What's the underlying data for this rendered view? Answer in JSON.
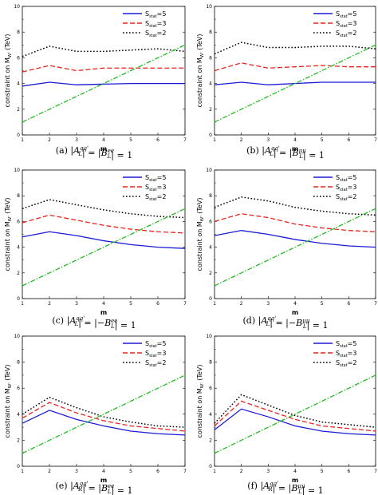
{
  "chart_data": [
    {
      "type": "line",
      "caption": "(a) |A_L^{qq'}| = |B_L^{ee}| = 1",
      "xlabel": "m",
      "ylabel": "constraint on M_W' (TeV)",
      "xlim": [
        1,
        7
      ],
      "ylim": [
        0,
        10
      ],
      "x_ticks": [
        1,
        2,
        3,
        4,
        5,
        6,
        7
      ],
      "y_ticks": [
        0,
        2,
        4,
        6,
        8,
        10
      ],
      "legend_position": "top-right",
      "legend": [
        "S_stat=5",
        "S_stat=3",
        "S_stat=2"
      ],
      "x": [
        1,
        2,
        3,
        4,
        5,
        6,
        7
      ],
      "series": [
        {
          "name": "S_stat=5",
          "color": "#1a1ad6",
          "dash": "solid",
          "values": [
            3.8,
            4.1,
            3.9,
            3.95,
            4.0,
            4.0,
            4.0
          ]
        },
        {
          "name": "S_stat=3",
          "color": "#e8231b",
          "dash": "dashed",
          "values": [
            4.9,
            5.4,
            5.0,
            5.2,
            5.2,
            5.2,
            5.2
          ]
        },
        {
          "name": "S_stat=2",
          "color": "#000000",
          "dash": "dotted",
          "values": [
            6.1,
            6.9,
            6.5,
            6.5,
            6.6,
            6.7,
            6.5
          ]
        },
        {
          "name": "",
          "color": "#22bb22",
          "dash": "dashdot",
          "values": [
            1,
            2,
            3,
            4,
            5,
            6,
            7
          ]
        }
      ]
    },
    {
      "type": "line",
      "caption": "(b) |A_L^{qq'}| = |B_L^{μμ}| = 1",
      "xlabel": "m",
      "ylabel": "constraint on M_W' (TeV)",
      "xlim": [
        1,
        7
      ],
      "ylim": [
        0,
        10
      ],
      "x_ticks": [
        1,
        2,
        3,
        4,
        5,
        6,
        7
      ],
      "y_ticks": [
        0,
        2,
        4,
        6,
        8,
        10
      ],
      "legend_position": "top-right",
      "legend": [
        "S_stat=5",
        "S_stat=3",
        "S_stat=2"
      ],
      "x": [
        1,
        2,
        3,
        4,
        5,
        6,
        7
      ],
      "series": [
        {
          "name": "S_stat=5",
          "color": "#1a1ad6",
          "dash": "solid",
          "values": [
            3.9,
            4.1,
            3.9,
            4.0,
            4.1,
            4.1,
            4.1
          ]
        },
        {
          "name": "S_stat=3",
          "color": "#e8231b",
          "dash": "dashed",
          "values": [
            5.0,
            5.6,
            5.2,
            5.3,
            5.4,
            5.3,
            5.3
          ]
        },
        {
          "name": "S_stat=2",
          "color": "#000000",
          "dash": "dotted",
          "values": [
            6.3,
            7.2,
            6.8,
            6.8,
            6.9,
            6.9,
            6.7
          ]
        },
        {
          "name": "",
          "color": "#22bb22",
          "dash": "dashdot",
          "values": [
            1,
            2,
            3,
            4,
            5,
            6,
            7
          ]
        }
      ]
    },
    {
      "type": "line",
      "caption": "(c) |A_L^{qq'}| = |−B_L^{ee}| = 1",
      "xlabel": "m",
      "ylabel": "constraint on M_W' (TeV)",
      "xlim": [
        1,
        7
      ],
      "ylim": [
        0,
        10
      ],
      "x_ticks": [
        1,
        2,
        3,
        4,
        5,
        6,
        7
      ],
      "y_ticks": [
        0,
        2,
        4,
        6,
        8,
        10
      ],
      "legend_position": "top-right",
      "legend": [
        "S_stat=5",
        "S_stat=3",
        "S_stat=2"
      ],
      "x": [
        1,
        2,
        3,
        4,
        5,
        6,
        7
      ],
      "series": [
        {
          "name": "S_stat=5",
          "color": "#1a1ad6",
          "dash": "solid",
          "values": [
            4.8,
            5.2,
            4.9,
            4.5,
            4.2,
            4.0,
            3.9
          ]
        },
        {
          "name": "S_stat=3",
          "color": "#e8231b",
          "dash": "dashed",
          "values": [
            5.9,
            6.5,
            6.1,
            5.7,
            5.4,
            5.2,
            5.1
          ]
        },
        {
          "name": "S_stat=2",
          "color": "#000000",
          "dash": "dotted",
          "values": [
            7.0,
            7.7,
            7.3,
            6.9,
            6.6,
            6.4,
            6.3
          ]
        },
        {
          "name": "",
          "color": "#22bb22",
          "dash": "dashdot",
          "values": [
            1,
            2,
            3,
            4,
            5,
            6,
            7
          ]
        }
      ]
    },
    {
      "type": "line",
      "caption": "(d) |A_L^{qq'}| = |−B_L^{μμ}| = 1",
      "xlabel": "m",
      "ylabel": "constraint on M_W' (TeV)",
      "xlim": [
        1,
        7
      ],
      "ylim": [
        0,
        10
      ],
      "x_ticks": [
        1,
        2,
        3,
        4,
        5,
        6,
        7
      ],
      "y_ticks": [
        0,
        2,
        4,
        6,
        8,
        10
      ],
      "legend_position": "top-right",
      "legend": [
        "S_stat=5",
        "S_stat=3",
        "S_stat=2"
      ],
      "x": [
        1,
        2,
        3,
        4,
        5,
        6,
        7
      ],
      "series": [
        {
          "name": "S_stat=5",
          "color": "#1a1ad6",
          "dash": "solid",
          "values": [
            4.9,
            5.3,
            5.0,
            4.6,
            4.3,
            4.1,
            4.0
          ]
        },
        {
          "name": "S_stat=3",
          "color": "#e8231b",
          "dash": "dashed",
          "values": [
            6.0,
            6.6,
            6.3,
            5.8,
            5.5,
            5.3,
            5.2
          ]
        },
        {
          "name": "S_stat=2",
          "color": "#000000",
          "dash": "dotted",
          "values": [
            7.1,
            7.9,
            7.6,
            7.1,
            6.8,
            6.6,
            6.5
          ]
        },
        {
          "name": "",
          "color": "#22bb22",
          "dash": "dashdot",
          "values": [
            1,
            2,
            3,
            4,
            5,
            6,
            7
          ]
        }
      ]
    },
    {
      "type": "line",
      "caption": "(e) |A_R^{qq'}| = |B_L^{ee}| = 1",
      "xlabel": "m",
      "ylabel": "constraint on M_W' (TeV)",
      "xlim": [
        1,
        7
      ],
      "ylim": [
        0,
        10
      ],
      "x_ticks": [
        1,
        2,
        3,
        4,
        5,
        6,
        7
      ],
      "y_ticks": [
        0,
        2,
        4,
        6,
        8,
        10
      ],
      "legend_position": "top-right",
      "legend": [
        "S_stat=5",
        "S_stat=3",
        "S_stat=2"
      ],
      "x": [
        1,
        2,
        3,
        4,
        5,
        6,
        7
      ],
      "series": [
        {
          "name": "S_stat=5",
          "color": "#1a1ad6",
          "dash": "solid",
          "values": [
            3.3,
            4.3,
            3.6,
            3.1,
            2.7,
            2.5,
            2.4
          ]
        },
        {
          "name": "S_stat=3",
          "color": "#e8231b",
          "dash": "dashed",
          "values": [
            3.7,
            4.9,
            4.1,
            3.5,
            3.1,
            2.9,
            2.7
          ]
        },
        {
          "name": "S_stat=2",
          "color": "#000000",
          "dash": "dotted",
          "values": [
            4.0,
            5.3,
            4.5,
            3.8,
            3.4,
            3.1,
            3.0
          ]
        },
        {
          "name": "",
          "color": "#22bb22",
          "dash": "dashdot",
          "values": [
            1,
            2,
            3,
            4,
            5,
            6,
            7
          ]
        }
      ]
    },
    {
      "type": "line",
      "caption": "(f) |A_R^{qq'}| = |B_L^{μμ}| = 1",
      "xlabel": "m",
      "ylabel": "constraint on M_W' (TeV)",
      "xlim": [
        1,
        7
      ],
      "ylim": [
        0,
        10
      ],
      "x_ticks": [
        1,
        2,
        3,
        4,
        5,
        6,
        7
      ],
      "y_ticks": [
        0,
        2,
        4,
        6,
        8,
        10
      ],
      "legend_position": "top-right",
      "legend": [
        "S_stat=5",
        "S_stat=3",
        "S_stat=2"
      ],
      "x": [
        1,
        2,
        3,
        4,
        5,
        6,
        7
      ],
      "series": [
        {
          "name": "S_stat=5",
          "color": "#1a1ad6",
          "dash": "solid",
          "values": [
            2.8,
            4.4,
            3.8,
            3.1,
            2.7,
            2.5,
            2.4
          ]
        },
        {
          "name": "S_stat=3",
          "color": "#e8231b",
          "dash": "dashed",
          "values": [
            3.1,
            5.0,
            4.3,
            3.6,
            3.1,
            2.9,
            2.7
          ]
        },
        {
          "name": "S_stat=2",
          "color": "#000000",
          "dash": "dotted",
          "values": [
            3.3,
            5.5,
            4.7,
            3.9,
            3.4,
            3.2,
            3.0
          ]
        },
        {
          "name": "",
          "color": "#22bb22",
          "dash": "dashdot",
          "values": [
            1,
            2,
            3,
            4,
            5,
            6,
            7
          ]
        }
      ]
    }
  ]
}
